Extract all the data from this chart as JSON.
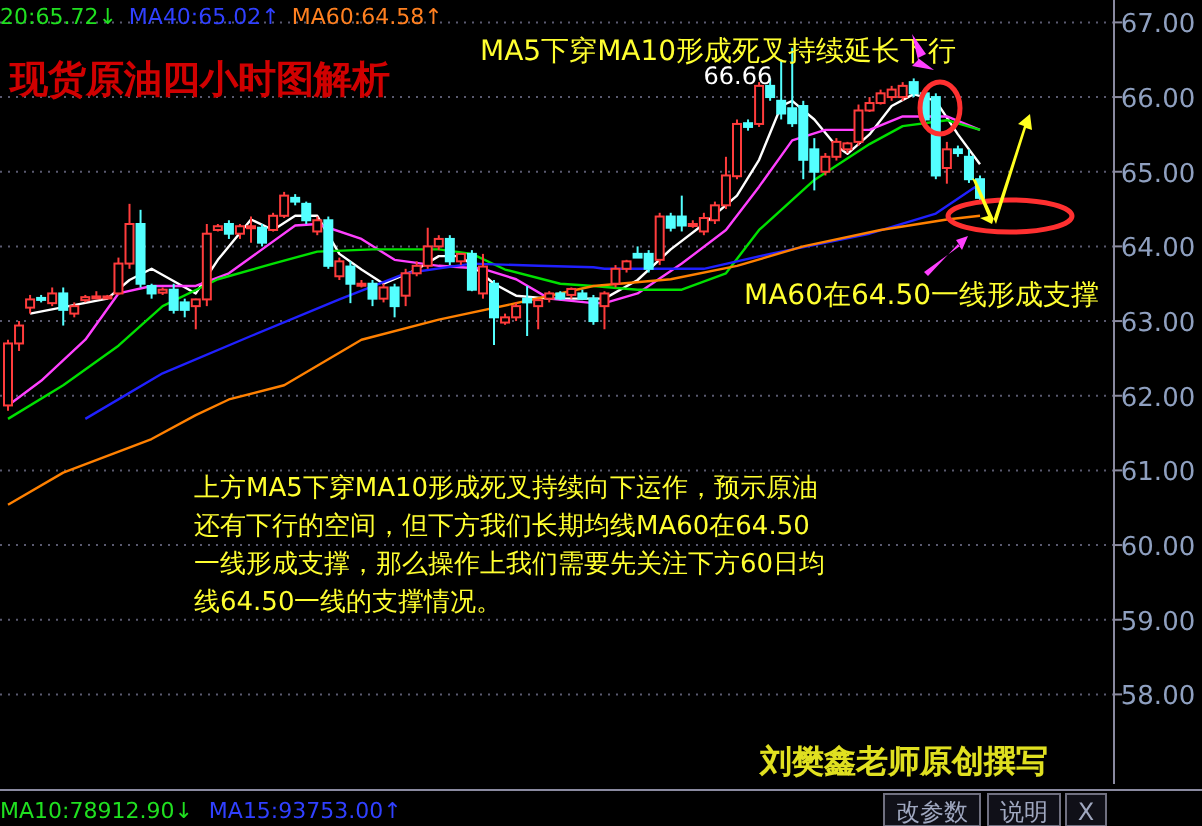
{
  "chart_data": {
    "type": "candlestick",
    "title": "现货原油四小时图解析",
    "categories": [
      null,
      null,
      null,
      null,
      null,
      null,
      null,
      null,
      null,
      null,
      null,
      null,
      null,
      null,
      null,
      null,
      null,
      null,
      null,
      null,
      null,
      null,
      null,
      null,
      null,
      null,
      null,
      null,
      null,
      null,
      null,
      null,
      null,
      null,
      null,
      null,
      null,
      null,
      null,
      null,
      null,
      null,
      null,
      null,
      null,
      null,
      null,
      null,
      null,
      null,
      null,
      null,
      null,
      null,
      null,
      null,
      null,
      null,
      null,
      null,
      null,
      null,
      null,
      null,
      null,
      null,
      null,
      null,
      null,
      null,
      null,
      null,
      null,
      null,
      null,
      null,
      null,
      null,
      null,
      null,
      null,
      null,
      null,
      null,
      null,
      null,
      null,
      null,
      null
    ],
    "ohlc": [
      [
        61.87,
        62.75,
        61.8,
        62.7
      ],
      [
        62.7,
        63.0,
        62.6,
        62.94
      ],
      [
        63.18,
        63.35,
        63.1,
        63.29
      ],
      [
        63.31,
        63.35,
        63.25,
        63.29
      ],
      [
        63.24,
        63.45,
        63.2,
        63.37
      ],
      [
        63.37,
        63.45,
        62.94,
        63.15
      ],
      [
        63.1,
        63.25,
        63.05,
        63.2
      ],
      [
        63.28,
        63.35,
        63.25,
        63.32
      ],
      [
        63.32,
        63.4,
        63.3,
        63.33
      ],
      [
        63.33,
        63.35,
        63.3,
        63.33
      ],
      [
        63.37,
        63.85,
        63.35,
        63.77
      ],
      [
        63.77,
        64.57,
        63.7,
        64.3
      ],
      [
        64.3,
        64.49,
        63.45,
        63.5
      ],
      [
        63.47,
        63.5,
        63.3,
        63.37
      ],
      [
        63.38,
        63.45,
        63.35,
        63.42
      ],
      [
        63.42,
        63.5,
        63.1,
        63.15
      ],
      [
        63.25,
        63.3,
        63.05,
        63.15
      ],
      [
        63.2,
        63.3,
        62.89,
        63.29
      ],
      [
        63.29,
        64.3,
        63.2,
        64.17
      ],
      [
        64.22,
        64.3,
        64.2,
        64.27
      ],
      [
        64.3,
        64.35,
        64.1,
        64.17
      ],
      [
        64.17,
        64.3,
        64.1,
        64.27
      ],
      [
        64.27,
        64.4,
        64.05,
        64.27
      ],
      [
        64.25,
        64.3,
        64.0,
        64.05
      ],
      [
        64.22,
        64.45,
        64.2,
        64.41
      ],
      [
        64.41,
        64.73,
        64.38,
        64.68
      ],
      [
        64.65,
        64.7,
        64.55,
        64.6
      ],
      [
        64.57,
        64.6,
        64.3,
        64.35
      ],
      [
        64.2,
        64.4,
        64.15,
        64.35
      ],
      [
        64.35,
        64.4,
        63.7,
        63.74
      ],
      [
        63.6,
        63.85,
        63.55,
        63.8
      ],
      [
        63.73,
        63.8,
        63.24,
        63.5
      ],
      [
        63.5,
        63.55,
        63.45,
        63.5
      ],
      [
        63.5,
        63.55,
        63.2,
        63.3
      ],
      [
        63.3,
        63.5,
        63.25,
        63.45
      ],
      [
        63.45,
        63.5,
        63.05,
        63.2
      ],
      [
        63.34,
        63.7,
        63.2,
        63.64
      ],
      [
        63.64,
        63.8,
        63.6,
        63.74
      ],
      [
        63.74,
        64.25,
        63.7,
        64.0
      ],
      [
        64.0,
        64.15,
        63.95,
        64.1
      ],
      [
        64.1,
        64.15,
        63.75,
        63.8
      ],
      [
        63.8,
        63.9,
        63.75,
        63.9
      ],
      [
        63.9,
        63.95,
        63.4,
        63.42
      ],
      [
        63.37,
        63.9,
        63.3,
        63.73
      ],
      [
        63.5,
        63.55,
        62.68,
        63.05
      ],
      [
        62.98,
        63.1,
        62.95,
        63.05
      ],
      [
        63.05,
        63.25,
        63.0,
        63.2
      ],
      [
        63.3,
        63.47,
        62.8,
        63.25
      ],
      [
        63.2,
        63.3,
        62.89,
        63.28
      ],
      [
        63.3,
        63.4,
        63.25,
        63.37
      ],
      [
        63.37,
        63.4,
        63.28,
        63.3
      ],
      [
        63.35,
        63.45,
        63.3,
        63.43
      ],
      [
        63.37,
        63.42,
        63.28,
        63.3
      ],
      [
        63.3,
        63.35,
        62.95,
        63.0
      ],
      [
        63.2,
        63.4,
        62.89,
        63.37
      ],
      [
        63.5,
        63.75,
        63.45,
        63.7
      ],
      [
        63.7,
        63.82,
        63.65,
        63.8
      ],
      [
        63.9,
        64.0,
        63.85,
        63.85
      ],
      [
        63.9,
        63.95,
        63.65,
        63.7
      ],
      [
        63.82,
        64.45,
        63.75,
        64.4
      ],
      [
        64.4,
        64.45,
        64.2,
        64.25
      ],
      [
        64.4,
        64.68,
        64.2,
        64.28
      ],
      [
        64.3,
        64.35,
        64.25,
        64.3
      ],
      [
        64.2,
        64.45,
        64.15,
        64.38
      ],
      [
        64.35,
        64.6,
        64.3,
        64.55
      ],
      [
        64.55,
        65.2,
        64.5,
        64.95
      ],
      [
        64.94,
        65.7,
        64.9,
        65.64
      ],
      [
        65.65,
        65.7,
        65.55,
        65.6
      ],
      [
        65.64,
        66.2,
        65.6,
        66.15
      ],
      [
        66.15,
        66.25,
        65.95,
        66.0
      ],
      [
        65.95,
        66.5,
        65.7,
        65.78
      ],
      [
        65.85,
        66.66,
        65.6,
        65.65
      ],
      [
        65.88,
        65.95,
        64.9,
        65.16
      ],
      [
        65.3,
        65.45,
        64.75,
        65.0
      ],
      [
        65.0,
        65.25,
        64.95,
        65.2
      ],
      [
        65.2,
        65.45,
        65.15,
        65.4
      ],
      [
        65.3,
        65.4,
        65.25,
        65.38
      ],
      [
        65.4,
        65.9,
        65.35,
        65.82
      ],
      [
        65.82,
        66.0,
        65.8,
        65.92
      ],
      [
        65.92,
        66.1,
        65.9,
        66.05
      ],
      [
        66.0,
        66.15,
        65.95,
        66.1
      ],
      [
        66.0,
        66.2,
        65.95,
        66.15
      ],
      [
        66.2,
        66.25,
        66.0,
        66.05
      ],
      [
        66.05,
        66.1,
        65.6,
        65.7
      ],
      [
        66.0,
        66.05,
        64.9,
        64.95
      ],
      [
        65.05,
        65.4,
        64.84,
        65.3
      ],
      [
        65.3,
        65.35,
        65.2,
        65.25
      ],
      [
        65.2,
        65.3,
        64.85,
        64.9
      ],
      [
        64.9,
        64.95,
        64.6,
        64.65
      ]
    ],
    "series": [
      {
        "type": "line",
        "color": "#ffffff",
        "values": [
          null,
          null,
          63.1,
          null,
          null,
          null,
          null,
          null,
          null,
          63.3,
          null,
          63.55,
          null,
          63.7,
          null,
          null,
          null,
          63.37,
          null,
          63.82,
          null,
          null,
          64.36,
          null,
          64.22,
          null,
          64.41,
          null,
          64.41,
          null,
          63.9,
          null,
          63.69,
          null,
          63.5,
          null,
          null,
          63.69,
          null,
          63.87,
          null,
          63.87,
          null,
          null,
          63.5,
          null,
          63.34,
          null,
          null,
          63.3,
          null,
          null,
          63.3,
          null,
          63.3,
          null,
          null,
          63.55,
          null,
          null,
          63.96,
          null,
          null,
          64.3,
          null,
          null,
          64.68,
          null,
          65.16,
          null,
          65.88,
          65.95,
          null,
          65.7,
          null,
          65.34,
          65.24,
          null,
          65.5,
          null,
          65.88,
          null,
          66.04,
          null,
          65.95,
          null,
          65.5,
          null,
          65.1
        ]
      },
      {
        "type": "line",
        "color": "#ff40ff",
        "values": [
          61.87,
          null,
          null,
          62.2,
          null,
          null,
          null,
          62.75,
          null,
          null,
          63.37,
          null,
          null,
          63.47,
          null,
          null,
          null,
          63.47,
          null,
          null,
          63.64,
          null,
          null,
          63.96,
          null,
          null,
          64.28,
          null,
          64.3,
          null,
          null,
          null,
          64.1,
          null,
          null,
          63.82,
          null,
          null,
          null,
          63.74,
          null,
          null,
          null,
          63.7,
          null,
          null,
          63.56,
          null,
          null,
          63.3,
          null,
          null,
          null,
          63.24,
          63.24,
          null,
          null,
          63.37,
          null,
          null,
          null,
          63.77,
          null,
          null,
          null,
          64.22,
          null,
          null,
          64.8,
          null,
          null,
          65.42,
          null,
          null,
          65.56,
          null,
          null,
          null,
          65.56,
          null,
          null,
          65.74,
          null,
          null,
          null,
          65.74,
          null,
          null,
          65.56
        ]
      },
      {
        "type": "line",
        "color": "#00e000",
        "values": [
          61.69,
          null,
          null,
          null,
          null,
          62.14,
          null,
          null,
          null,
          null,
          62.67,
          null,
          null,
          null,
          63.2,
          null,
          null,
          null,
          null,
          63.56,
          null,
          null,
          null,
          null,
          63.77,
          null,
          null,
          null,
          63.93,
          null,
          null,
          null,
          null,
          63.96,
          null,
          null,
          null,
          null,
          null,
          63.96,
          null,
          null,
          63.9,
          null,
          null,
          63.69,
          null,
          null,
          null,
          null,
          63.5,
          null,
          null,
          63.47,
          null,
          null,
          null,
          63.42,
          null,
          null,
          null,
          63.42,
          null,
          null,
          null,
          63.64,
          null,
          null,
          64.22,
          null,
          null,
          null,
          null,
          64.89,
          null,
          null,
          null,
          null,
          65.37,
          null,
          null,
          65.61,
          null,
          null,
          null,
          65.69,
          null,
          null,
          65.56
        ]
      },
      {
        "type": "line",
        "color": "#2020ff",
        "values": [
          null,
          null,
          null,
          null,
          null,
          null,
          null,
          61.69,
          null,
          null,
          null,
          null,
          null,
          null,
          62.3,
          null,
          null,
          null,
          null,
          null,
          null,
          null,
          62.8,
          null,
          null,
          null,
          null,
          null,
          null,
          null,
          63.29,
          null,
          null,
          null,
          null,
          null,
          63.64,
          null,
          null,
          null,
          null,
          null,
          63.77,
          null,
          null,
          null,
          null,
          null,
          63.74,
          null,
          null,
          null,
          null,
          63.72,
          63.7,
          null,
          null,
          null,
          null,
          null,
          null,
          null,
          null,
          63.7,
          null,
          null,
          null,
          null,
          null,
          63.9,
          null,
          null,
          null,
          null,
          null,
          null,
          null,
          null,
          64.17,
          null,
          null,
          null,
          null,
          null,
          64.44,
          null,
          null,
          null,
          64.84
        ]
      },
      {
        "type": "line",
        "color": "#ff8000",
        "values": [
          60.54,
          null,
          null,
          null,
          null,
          60.97,
          null,
          null,
          null,
          null,
          null,
          null,
          null,
          61.42,
          null,
          null,
          null,
          61.74,
          null,
          null,
          61.95,
          null,
          null,
          null,
          null,
          62.14,
          null,
          null,
          null,
          null,
          null,
          null,
          62.75,
          null,
          null,
          null,
          null,
          null,
          null,
          63.02,
          null,
          null,
          null,
          null,
          null,
          null,
          63.24,
          null,
          null,
          null,
          null,
          null,
          null,
          63.47,
          null,
          null,
          null,
          null,
          null,
          null,
          63.56,
          null,
          null,
          null,
          null,
          null,
          63.74,
          null,
          null,
          null,
          null,
          null,
          64.0,
          null,
          null,
          null,
          null,
          null,
          null,
          64.22,
          null,
          null,
          null,
          null,
          null,
          64.36,
          null,
          null,
          64.41
        ]
      }
    ],
    "ylim": [
      56.8,
      67.3
    ],
    "yticks": [
      {
        "value": 58,
        "label": "58.00"
      },
      {
        "value": 59,
        "label": "59.00"
      },
      {
        "value": 60,
        "label": "60.00"
      },
      {
        "value": 61,
        "label": "61.00"
      },
      {
        "value": 62,
        "label": "62.00"
      },
      {
        "value": 63,
        "label": "63.00"
      },
      {
        "value": 64,
        "label": "64.00"
      },
      {
        "value": 65,
        "label": "65.00"
      },
      {
        "value": 66,
        "label": "66.00"
      },
      {
        "value": 67,
        "label": "67.00"
      }
    ],
    "grid": "y",
    "annotations": [
      "MA5下穿MA10形成死叉持续延长下行",
      "66.66",
      "MA60在64.50一线形成支撑",
      "上方MA5下穿MA10形成死叉持续向下运作，预示原油还有下行的空间，但下方我们长期均线MA60在64.50一线形成支撑，那么操作上我们需要先关注下方60日均线64.50一线的支撑情况。",
      "刘樊鑫老师原创撰写",
      "20:65.72↓",
      "MA40:65.02↑",
      "MA60:64.58↑",
      "MA10:78912.90↓",
      "MA15:93753.00↑",
      "改参数",
      "说明",
      "X"
    ]
  }
}
